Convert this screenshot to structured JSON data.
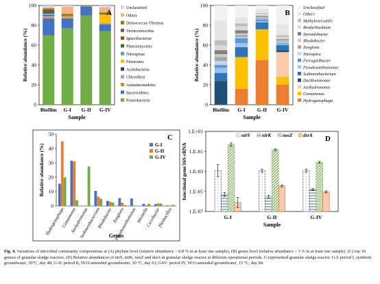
{
  "panels": {
    "A": {
      "label": "A",
      "type": "bar",
      "stacked": true,
      "xlabel": "Sample",
      "ylabel": "Relative abundance (%)",
      "ylim": [
        0,
        100
      ],
      "yticks": [
        "0",
        "20",
        "40",
        "60",
        "80",
        "100"
      ],
      "categories": [
        "Biofilm",
        "G-I",
        "G-II",
        "G-IV"
      ],
      "series": [
        {
          "name": "Proteobacteria",
          "color": "#70ad47",
          "values": [
            70,
            77,
            90,
            74
          ]
        },
        {
          "name": "Bacteroidetes",
          "color": "#4472c4",
          "values": [
            17,
            10,
            9,
            7
          ]
        },
        {
          "name": "Armatimonadetes",
          "color": "#ed7d31",
          "values": [
            0.5,
            0.3,
            0.2,
            0.3
          ]
        },
        {
          "name": "Chloroflexi",
          "color": "#a5a5a5",
          "values": [
            2,
            0.3,
            0.1,
            0.3
          ]
        },
        {
          "name": "Acidobacteria",
          "color": "#264478",
          "values": [
            0.8,
            0.2,
            0.1,
            0.2
          ]
        },
        {
          "name": "Firmicutes",
          "color": "#ffc000",
          "values": [
            0.6,
            1,
            0.2,
            9
          ]
        },
        {
          "name": "Nitrospirae",
          "color": "#5b9bd5",
          "values": [
            1,
            0.3,
            0.1,
            0.2
          ]
        },
        {
          "name": "Planctomycetes",
          "color": "#43682b",
          "values": [
            1.5,
            0.4,
            0.1,
            0.4
          ]
        },
        {
          "name": "Ignavibacteriae",
          "color": "#9e480e",
          "values": [
            2,
            0.3,
            0.1,
            0.3
          ]
        },
        {
          "name": "Verrucomicrobia",
          "color": "#636363",
          "values": [
            1,
            0.3,
            0.1,
            0.3
          ]
        },
        {
          "name": "Deinococcus-Thermus",
          "color": "#997300",
          "values": [
            0.5,
            1.5,
            0.1,
            1
          ]
        },
        {
          "name": "Others",
          "color": "#f4b183",
          "values": [
            1.1,
            7,
            0.2,
            5
          ]
        },
        {
          "name": "Unclassified",
          "color": "#d9d9d9",
          "values": [
            2,
            1.4,
            0.6,
            2
          ]
        }
      ]
    },
    "B": {
      "label": "B",
      "type": "bar",
      "stacked": true,
      "xlabel": "Sample",
      "ylabel": "Relative abundance (%)",
      "ylim": [
        0,
        100
      ],
      "yticks": [
        "0",
        "20",
        "40",
        "60",
        "80",
        "100"
      ],
      "categories": [
        "Biofilm",
        "G-I",
        "G-II",
        "G-IV"
      ],
      "series": [
        {
          "name": "Hydrogenophaga",
          "color": "#ed7d31",
          "values": [
            0,
            16,
            45,
            20
          ]
        },
        {
          "name": "Comamonas",
          "color": "#ffc000",
          "values": [
            0,
            32,
            31,
            8
          ]
        },
        {
          "name": "Azohydromonas",
          "color": "#f8cbad",
          "values": [
            0,
            0,
            0,
            25
          ]
        },
        {
          "name": "Dechloromonas",
          "color": "#1f4e79",
          "values": [
            24,
            0,
            0,
            2
          ]
        },
        {
          "name": "Sedimenibacterium",
          "color": "#2e75b6",
          "values": [
            8,
            10,
            7,
            5
          ]
        },
        {
          "name": "Pseudoxanthomonas",
          "color": "#9dc3e6",
          "values": [
            5,
            4,
            1,
            1
          ]
        },
        {
          "name": "Ferruginibacter",
          "color": "#5b9bd5",
          "values": [
            3,
            5,
            2,
            1
          ]
        },
        {
          "name": "Nitrospira",
          "color": "#bdd7ee",
          "values": [
            4,
            1,
            0.5,
            1
          ]
        },
        {
          "name": "Zoogloea",
          "color": "#a6a6a6",
          "values": [
            4,
            2,
            1,
            1
          ]
        },
        {
          "name": "Rhodobacter",
          "color": "#c9c9c9",
          "values": [
            3,
            2,
            1,
            1
          ]
        },
        {
          "name": "Steroidobacter",
          "color": "#7f7f7f",
          "values": [
            4,
            3,
            1,
            1
          ]
        },
        {
          "name": "Bradyrhizobium",
          "color": "#d9d9d9",
          "values": [
            5,
            4,
            2,
            2
          ]
        },
        {
          "name": "Methyloversatilis",
          "color": "#bfbfbf",
          "values": [
            5,
            3,
            1,
            2
          ]
        },
        {
          "name": "Others",
          "color": "#e7e6e6",
          "values": [
            20,
            6,
            4,
            11
          ]
        },
        {
          "name": "Unclassified",
          "color": "#f2f2f2",
          "values": [
            15,
            12,
            3.5,
            19
          ]
        }
      ]
    },
    "C": {
      "label": "C",
      "type": "bar",
      "xlabel": "Genus",
      "ylabel": "Relative abundance (%)",
      "ylim": [
        0,
        50
      ],
      "yticks": [
        "0",
        "10",
        "20",
        "30",
        "40",
        "50"
      ],
      "categories": [
        "Hydrogenophaga",
        "Comamonas",
        "Azohydromonas",
        "Sedimenibacterium",
        "Rhodobacter",
        "Zoogloea",
        "Pseudoxanthomonas",
        "Ideonella",
        "Curvibacter",
        "Thiobacillus"
      ],
      "series": [
        {
          "name": "G-I",
          "color": "#4472c4",
          "values": [
            15.5,
            31.5,
            0,
            10.5,
            3.5,
            5.5,
            5.2,
            1.5,
            1.3,
            0.4
          ]
        },
        {
          "name": "G-II",
          "color": "#ed7d31",
          "values": [
            45,
            31,
            0,
            6.5,
            3,
            2.3,
            0.4,
            0.5,
            1.8,
            0.3
          ]
        },
        {
          "name": "G-IV",
          "color": "#70ad47",
          "values": [
            20,
            4,
            27.5,
            5,
            2.3,
            0.6,
            0.1,
            1.5,
            1.7,
            0.8
          ]
        }
      ]
    },
    "D": {
      "label": "D",
      "type": "bar",
      "xlabel": "Sample",
      "ylabel": "functional gene/16S rRNA",
      "ylim": [
        1e-07,
        10
      ],
      "log": true,
      "yticks": [
        "1.E+01",
        "1.E-01",
        "1.E-03",
        "1.E-05",
        "1.E-07"
      ],
      "categories": [
        "G-I",
        "G-II",
        "G-IV"
      ],
      "series": [
        {
          "name": "nirS",
          "color": "#ffffff",
          "values": [
            0.0012,
            0.0012,
            0.0012
          ],
          "err": [
            0.6,
            0.15,
            0.15
          ]
        },
        {
          "name": "nirK",
          "color": "#8ea9db",
          "values": [
            5e-06,
            3e-06,
            1.5e-05
          ],
          "err": [
            0.2,
            0.15,
            0.1
          ]
        },
        {
          "name": "nosZ",
          "color": "#c6e0b4",
          "values": [
            0.5,
            0.15,
            0.008
          ],
          "err": [
            0.15,
            0.1,
            0.1
          ]
        },
        {
          "name": "dsrA",
          "color": "#f8cbad",
          "values": [
            8e-07,
            3.5e-05,
            9e-06
          ],
          "err": [
            0.5,
            0.1,
            0.1
          ]
        }
      ]
    }
  },
  "caption": {
    "prefix": "Fig. 4.",
    "text": "Variations of microbial community compositions at (A) phylum level (relative abundance > 0.8 % in at least one sample), (B) genus level (relative abundance > 3 % in at least one sample). (C) top 10 genera of granular sludge reactors. (D) Relative abundances of nirS, nirK, nosZ and dsrA in granular sludge reactor at different operational periods. G represented granular sludge reactor. G-I: period I, synthetic groundwater, 30°C, day 48; G-II: period II, NO3-amended groundwater, 30 °C, day 61; G4V: period IV, NO3-amended groundwater, 15 °C, day 84."
  }
}
